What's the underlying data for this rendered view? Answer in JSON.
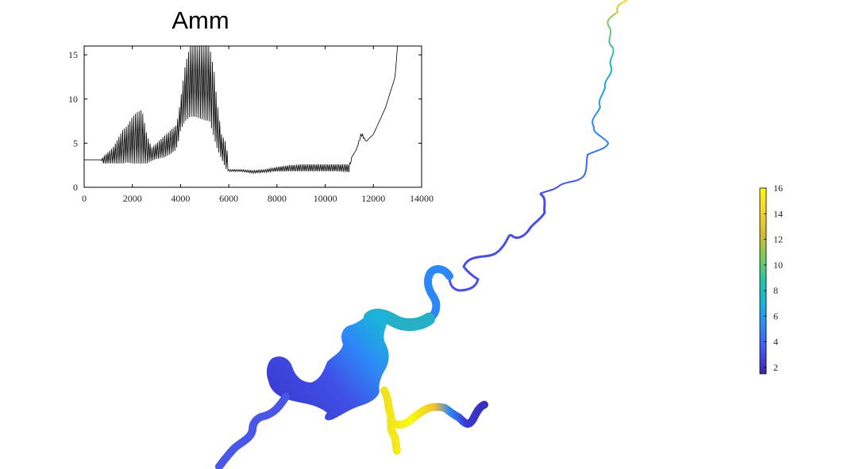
{
  "chart_data": [
    {
      "type": "line",
      "title": "Amm",
      "xlabel": "",
      "ylabel": "",
      "xlim": [
        0,
        14000
      ],
      "ylim": [
        0,
        16
      ],
      "xticks": [
        0,
        2000,
        4000,
        6000,
        8000,
        10000,
        12000,
        14000
      ],
      "yticks": [
        0,
        5,
        10,
        15
      ],
      "grid": false,
      "series": [
        {
          "color": "#000000",
          "x": [
            0,
            700,
            800,
            1000,
            1200,
            1400,
            1600,
            1800,
            2000,
            2200,
            2400,
            2600,
            2800,
            3000,
            3200,
            3400,
            3600,
            3800,
            3900,
            4000,
            4200,
            4400,
            4600,
            4800,
            5000,
            5200,
            5400,
            5500,
            5700,
            5900,
            6000,
            6500,
            7000,
            7500,
            8000,
            8500,
            9000,
            9500,
            10000,
            10500,
            11000,
            11100,
            11300,
            11500,
            11700,
            12000,
            12500,
            12900,
            13000
          ],
          "y_low": [
            3.1,
            3.1,
            2.7,
            2.7,
            2.7,
            2.7,
            2.7,
            2.8,
            2.7,
            2.7,
            2.7,
            2.7,
            3.0,
            3.2,
            3.3,
            3.5,
            3.8,
            4.2,
            5.0,
            6.5,
            7.5,
            8.0,
            8.0,
            7.8,
            7.6,
            7.5,
            5.5,
            4.5,
            3.2,
            2.0,
            1.8,
            1.8,
            1.6,
            1.7,
            1.8,
            1.8,
            1.8,
            1.8,
            1.8,
            1.8,
            1.7,
            3.4,
            4.3,
            5.8,
            5.2,
            6.0,
            9.0,
            12.5,
            16
          ],
          "y_high": [
            3.1,
            3.1,
            3.5,
            4.0,
            4.5,
            5.5,
            6.5,
            7.0,
            8.0,
            8.5,
            8.8,
            6.0,
            4.5,
            5.0,
            5.5,
            6.0,
            6.5,
            7.0,
            8.0,
            10.0,
            14.0,
            16.0,
            16.0,
            16.0,
            16.0,
            16.0,
            13.0,
            10.0,
            6.0,
            5.0,
            2.0,
            2.0,
            1.9,
            2.0,
            2.3,
            2.5,
            2.6,
            2.6,
            2.6,
            2.6,
            2.6,
            3.4,
            4.3,
            6.3,
            5.2,
            6.0,
            9.0,
            12.5,
            16
          ]
        }
      ]
    },
    {
      "type": "heatmap",
      "title": "",
      "colorbar": {
        "min": 1.5,
        "max": 16,
        "ticks": [
          2,
          4,
          6,
          8,
          10,
          12,
          14,
          16
        ],
        "colormap": [
          "#3e26a8",
          "#4653f0",
          "#2e87f7",
          "#1bb2dc",
          "#25c3a8",
          "#78cb5e",
          "#d4bb34",
          "#fbd12f",
          "#f9fb0e"
        ]
      }
    }
  ]
}
